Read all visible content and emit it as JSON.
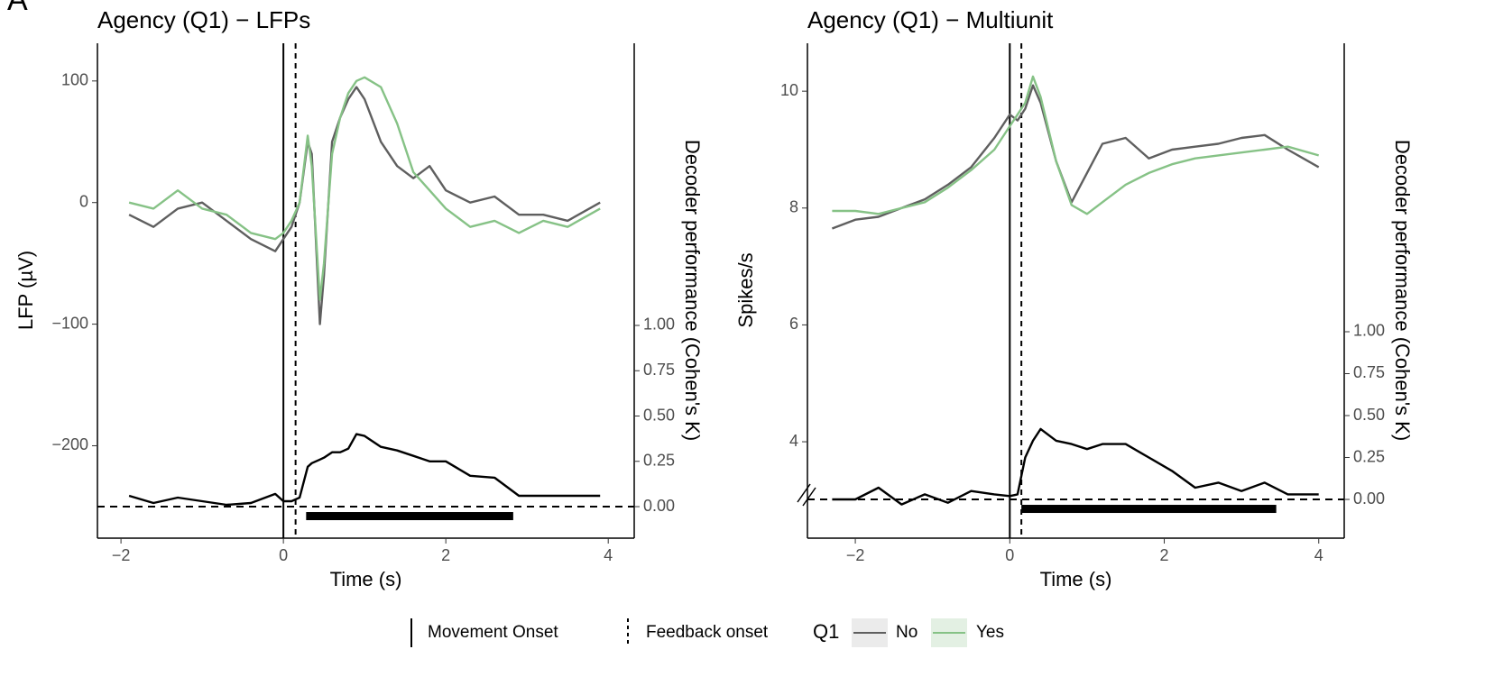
{
  "panel_label": "A",
  "chart_data": [
    {
      "type": "line",
      "title": "Agency (Q1) − LFPs",
      "xlabel": "Time (s)",
      "ylabel": "LFP (µV)",
      "y2label": "Decoder performance (Cohen's K)",
      "legend_title": "Q1",
      "xlim": [
        -2.29,
        4.32
      ],
      "ylim": [
        -276,
        131
      ],
      "y2lim": [
        -0.174,
        2.557
      ],
      "xticks": [
        {
          "value": -2,
          "label": "−2"
        },
        0,
        2,
        4
      ],
      "yticks": [
        {
          "value": -200,
          "label": "−200"
        },
        {
          "value": -100,
          "label": "−100"
        },
        0,
        100
      ],
      "y2ticks": [
        {
          "value": 0,
          "label": "0.00"
        },
        {
          "value": 0.25,
          "label": "0.25"
        },
        {
          "value": 0.5,
          "label": "0.50"
        },
        {
          "value": 0.75,
          "label": "0.75"
        },
        {
          "value": 1,
          "label": "1.00"
        }
      ],
      "reference_lines": [
        {
          "label": "Movement Onset",
          "x": 0,
          "style": "solid"
        },
        {
          "label": "Feedback onset",
          "x": 0.15,
          "style": "dashed"
        }
      ],
      "hline_y2": 0,
      "significance": [
        0.28,
        2.83
      ],
      "x": [
        -1.9,
        -1.6,
        -1.3,
        -1.0,
        -0.7,
        -0.4,
        -0.1,
        0.0,
        0.1,
        0.2,
        0.3,
        0.35,
        0.45,
        0.5,
        0.6,
        0.7,
        0.8,
        0.9,
        1.0,
        1.2,
        1.4,
        1.6,
        1.8,
        2.0,
        2.3,
        2.6,
        2.9,
        3.2,
        3.5,
        3.9
      ],
      "series": [
        {
          "name": "No",
          "color": "#5f5f5f",
          "values": [
            -10,
            -20,
            -5,
            0,
            -15,
            -30,
            -40,
            -30,
            -20,
            0,
            50,
            40,
            -100,
            -60,
            50,
            70,
            85,
            95,
            85,
            50,
            30,
            20,
            30,
            10,
            0,
            5,
            -10,
            -10,
            -15,
            0
          ]
        },
        {
          "name": "Yes",
          "color": "#86c286",
          "values": [
            0,
            -5,
            10,
            -5,
            -10,
            -25,
            -30,
            -25,
            -15,
            0,
            55,
            30,
            -80,
            -50,
            40,
            70,
            90,
            100,
            103,
            95,
            65,
            25,
            10,
            -5,
            -20,
            -15,
            -25,
            -15,
            -20,
            -5
          ]
        },
        {
          "color": "#000000",
          "axis": "y2",
          "values": [
            0.06,
            0.02,
            0.05,
            0.03,
            0.01,
            0.02,
            0.07,
            0.03,
            0.03,
            0.05,
            0.22,
            0.24,
            0.26,
            0.27,
            0.3,
            0.3,
            0.32,
            0.4,
            0.39,
            0.33,
            0.31,
            0.28,
            0.25,
            0.25,
            0.17,
            0.16,
            0.06,
            0.06,
            0.06,
            0.06
          ]
        }
      ]
    },
    {
      "type": "line",
      "title": "Agency (Q1) − Multiunit",
      "xlabel": "Time (s)",
      "ylabel": "Spikes/s",
      "y2label": "Decoder performance (Cohen's K)",
      "xlim": [
        -2.62,
        4.33
      ],
      "ylim": [
        2.35,
        10.82
      ],
      "y2lim": [
        -0.231,
        2.72
      ],
      "xticks": [
        {
          "value": -2,
          "label": "−2"
        },
        0,
        2,
        4
      ],
      "yticks": [
        4,
        6,
        8,
        10
      ],
      "y2ticks": [
        {
          "value": 0,
          "label": "0.00"
        },
        {
          "value": 0.25,
          "label": "0.25"
        },
        {
          "value": 0.5,
          "label": "0.50"
        },
        {
          "value": 0.75,
          "label": "0.75"
        },
        {
          "value": 1,
          "label": "1.00"
        }
      ],
      "reference_lines": [
        {
          "x": 0,
          "style": "solid"
        },
        {
          "x": 0.15,
          "style": "dashed"
        }
      ],
      "hline_y2": 0,
      "significance": [
        0.15,
        3.45
      ],
      "x": [
        -2.3,
        -2.0,
        -1.7,
        -1.4,
        -1.1,
        -0.8,
        -0.5,
        -0.2,
        0.0,
        0.1,
        0.2,
        0.3,
        0.4,
        0.6,
        0.8,
        1.0,
        1.2,
        1.5,
        1.8,
        2.1,
        2.4,
        2.7,
        3.0,
        3.3,
        3.6,
        4.0
      ],
      "series": [
        {
          "color": "#5f5f5f",
          "values": [
            7.65,
            7.8,
            7.85,
            8.0,
            8.15,
            8.4,
            8.7,
            9.2,
            9.6,
            9.5,
            9.7,
            10.1,
            9.8,
            8.8,
            8.1,
            8.6,
            9.1,
            9.2,
            8.85,
            9.0,
            9.05,
            9.1,
            9.2,
            9.25,
            9.0,
            8.7
          ]
        },
        {
          "color": "#86c286",
          "values": [
            7.95,
            7.95,
            7.9,
            8.0,
            8.1,
            8.35,
            8.65,
            9.0,
            9.4,
            9.6,
            9.8,
            10.25,
            9.9,
            8.8,
            8.05,
            7.9,
            8.1,
            8.4,
            8.6,
            8.75,
            8.85,
            8.9,
            8.95,
            9.0,
            9.05,
            8.9
          ]
        },
        {
          "color": "#000000",
          "axis": "y2",
          "values": [
            0.0,
            0.0,
            0.07,
            -0.03,
            0.03,
            -0.02,
            0.05,
            0.03,
            0.02,
            0.03,
            0.25,
            0.35,
            0.42,
            0.35,
            0.33,
            0.3,
            0.33,
            0.33,
            0.25,
            0.17,
            0.07,
            0.1,
            0.05,
            0.1,
            0.03,
            0.03
          ]
        }
      ]
    }
  ]
}
